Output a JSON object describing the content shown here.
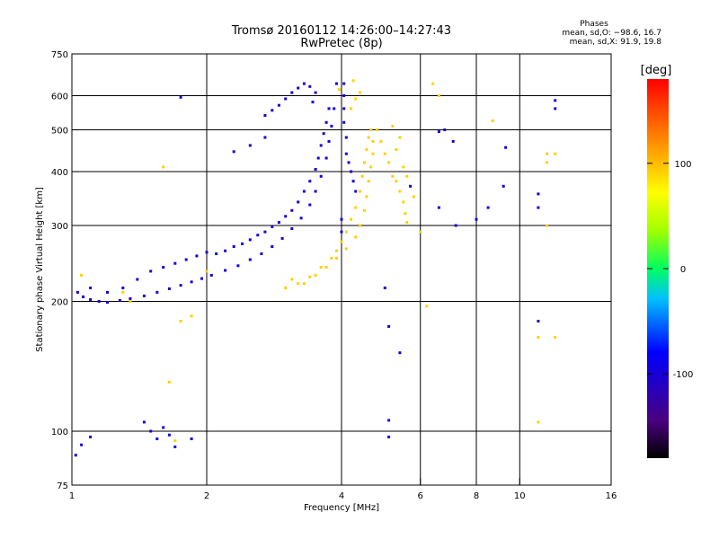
{
  "header": {
    "title_line1": "Tromsø 20160112 14:26:00–14:27:43",
    "title_line2": "RwPretec (8p)"
  },
  "phases_box": {
    "heading": "Phases",
    "line1": "mean, sd,O: −98.6, 16.7",
    "line2": "mean, sd,X:  91.9, 19.8"
  },
  "colorbar": {
    "unit_label": "[deg]",
    "ticks": [
      "100",
      "0",
      "-100"
    ],
    "tick_values": [
      100,
      0,
      -100
    ],
    "range": [
      -180,
      180
    ],
    "colormap": "rainbow (black-violet-blue-cyan-green-yellow-red)"
  },
  "chart_data": {
    "type": "scatter",
    "xlabel": "Frequency [MHz]",
    "ylabel": "Stationary phase Virtual Height [km]",
    "xscale": "log",
    "yscale": "log",
    "xlim": [
      1,
      16
    ],
    "ylim": [
      75,
      750
    ],
    "xticks": [
      "1",
      "2",
      "4",
      "6",
      "8",
      "10",
      "16"
    ],
    "xtick_values": [
      1,
      2,
      4,
      6,
      8,
      10,
      16
    ],
    "yticks": [
      "750",
      "600",
      "500",
      "400",
      "300",
      "200",
      "100",
      "75"
    ],
    "ytick_values": [
      750,
      600,
      500,
      400,
      300,
      200,
      100,
      75
    ],
    "grid_x": [
      2,
      4,
      6,
      8,
      10
    ],
    "grid_y": [
      100,
      200,
      300,
      400,
      500,
      600
    ],
    "series": [
      {
        "name": "O",
        "color_phase": -98.6,
        "points": [
          [
            1.03,
            210
          ],
          [
            1.06,
            205
          ],
          [
            1.1,
            202
          ],
          [
            1.15,
            200
          ],
          [
            1.2,
            199
          ],
          [
            1.28,
            201
          ],
          [
            1.35,
            203
          ],
          [
            1.45,
            206
          ],
          [
            1.55,
            210
          ],
          [
            1.65,
            214
          ],
          [
            1.75,
            218
          ],
          [
            1.85,
            222
          ],
          [
            1.95,
            226
          ],
          [
            2.05,
            230
          ],
          [
            2.2,
            236
          ],
          [
            2.35,
            242
          ],
          [
            2.5,
            250
          ],
          [
            2.65,
            258
          ],
          [
            2.8,
            268
          ],
          [
            2.95,
            280
          ],
          [
            3.1,
            295
          ],
          [
            3.25,
            312
          ],
          [
            3.4,
            335
          ],
          [
            3.5,
            360
          ],
          [
            3.6,
            390
          ],
          [
            3.7,
            430
          ],
          [
            3.75,
            470
          ],
          [
            3.8,
            510
          ],
          [
            3.85,
            560
          ],
          [
            3.9,
            640
          ],
          [
            1.1,
            215
          ],
          [
            1.2,
            210
          ],
          [
            1.3,
            215
          ],
          [
            1.4,
            225
          ],
          [
            1.5,
            235
          ],
          [
            1.6,
            240
          ],
          [
            1.7,
            245
          ],
          [
            1.8,
            250
          ],
          [
            1.9,
            255
          ],
          [
            2.0,
            260
          ],
          [
            2.1,
            258
          ],
          [
            2.2,
            262
          ],
          [
            2.3,
            268
          ],
          [
            2.4,
            272
          ],
          [
            2.5,
            278
          ],
          [
            2.6,
            285
          ],
          [
            2.7,
            290
          ],
          [
            2.8,
            298
          ],
          [
            2.9,
            305
          ],
          [
            3.0,
            315
          ],
          [
            3.1,
            325
          ],
          [
            3.2,
            340
          ],
          [
            3.3,
            360
          ],
          [
            3.4,
            380
          ],
          [
            3.5,
            405
          ],
          [
            3.55,
            430
          ],
          [
            3.6,
            460
          ],
          [
            3.65,
            490
          ],
          [
            3.7,
            520
          ],
          [
            3.75,
            560
          ],
          [
            2.7,
            540
          ],
          [
            2.8,
            555
          ],
          [
            2.9,
            570
          ],
          [
            3.0,
            590
          ],
          [
            3.1,
            610
          ],
          [
            3.2,
            625
          ],
          [
            3.3,
            640
          ],
          [
            3.4,
            630
          ],
          [
            3.5,
            610
          ],
          [
            3.45,
            580
          ],
          [
            4.05,
            640
          ],
          [
            4.05,
            600
          ],
          [
            4.05,
            560
          ],
          [
            4.05,
            520
          ],
          [
            4.1,
            480
          ],
          [
            4.1,
            440
          ],
          [
            4.15,
            420
          ],
          [
            4.2,
            400
          ],
          [
            4.25,
            380
          ],
          [
            4.3,
            360
          ],
          [
            1.45,
            105
          ],
          [
            1.5,
            100
          ],
          [
            1.55,
            96
          ],
          [
            1.6,
            102
          ],
          [
            1.65,
            98
          ],
          [
            1.7,
            92
          ],
          [
            1.02,
            88
          ],
          [
            1.05,
            93
          ],
          [
            1.1,
            97
          ],
          [
            1.85,
            96
          ],
          [
            2.3,
            445
          ],
          [
            2.5,
            460
          ],
          [
            2.7,
            480
          ],
          [
            1.75,
            595
          ],
          [
            5.0,
            215
          ],
          [
            5.1,
            175
          ],
          [
            5.4,
            152
          ],
          [
            5.1,
            106
          ],
          [
            5.1,
            97
          ],
          [
            5.7,
            370
          ],
          [
            6.6,
            495
          ],
          [
            6.6,
            330
          ],
          [
            7.1,
            470
          ],
          [
            8.0,
            310
          ],
          [
            8.5,
            330
          ],
          [
            9.2,
            370
          ],
          [
            9.3,
            455
          ],
          [
            11.0,
            330
          ],
          [
            12.0,
            585
          ],
          [
            12.0,
            560
          ],
          [
            11.0,
            180
          ],
          [
            11.0,
            355
          ],
          [
            6.8,
            500
          ],
          [
            7.2,
            300
          ],
          [
            4.0,
            310
          ],
          [
            4.0,
            290
          ]
        ]
      },
      {
        "name": "X",
        "color_phase": 91.9,
        "points": [
          [
            3.3,
            220
          ],
          [
            3.5,
            230
          ],
          [
            3.7,
            240
          ],
          [
            3.9,
            252
          ],
          [
            4.1,
            265
          ],
          [
            4.3,
            282
          ],
          [
            4.4,
            300
          ],
          [
            4.5,
            325
          ],
          [
            4.55,
            350
          ],
          [
            4.6,
            380
          ],
          [
            4.65,
            410
          ],
          [
            4.7,
            440
          ],
          [
            4.7,
            470
          ],
          [
            4.65,
            500
          ],
          [
            4.6,
            480
          ],
          [
            4.55,
            450
          ],
          [
            4.5,
            420
          ],
          [
            4.45,
            390
          ],
          [
            4.4,
            360
          ],
          [
            4.3,
            330
          ],
          [
            4.2,
            310
          ],
          [
            4.1,
            290
          ],
          [
            4.0,
            275
          ],
          [
            3.9,
            262
          ],
          [
            3.8,
            252
          ],
          [
            3.6,
            240
          ],
          [
            3.4,
            228
          ],
          [
            3.2,
            220
          ],
          [
            3.0,
            215
          ],
          [
            3.1,
            225
          ],
          [
            4.8,
            500
          ],
          [
            4.9,
            470
          ],
          [
            5.0,
            440
          ],
          [
            5.1,
            420
          ],
          [
            5.2,
            390
          ],
          [
            5.3,
            380
          ],
          [
            5.4,
            360
          ],
          [
            5.5,
            340
          ],
          [
            5.55,
            320
          ],
          [
            5.6,
            305
          ],
          [
            5.3,
            450
          ],
          [
            5.4,
            480
          ],
          [
            5.2,
            510
          ],
          [
            5.5,
            410
          ],
          [
            5.6,
            390
          ],
          [
            4.2,
            560
          ],
          [
            4.3,
            590
          ],
          [
            4.4,
            610
          ],
          [
            3.95,
            620
          ],
          [
            4.25,
            650
          ],
          [
            1.05,
            230
          ],
          [
            1.3,
            210
          ],
          [
            1.6,
            410
          ],
          [
            1.75,
            180
          ],
          [
            1.85,
            185
          ],
          [
            1.65,
            130
          ],
          [
            1.7,
            95
          ],
          [
            6.2,
            195
          ],
          [
            6.6,
            600
          ],
          [
            6.4,
            640
          ],
          [
            8.7,
            525
          ],
          [
            11.0,
            105
          ],
          [
            11.5,
            440
          ],
          [
            11.5,
            420
          ],
          [
            11.5,
            300
          ],
          [
            12.0,
            440
          ],
          [
            12.0,
            165
          ],
          [
            11.0,
            165
          ],
          [
            6.0,
            290
          ],
          [
            5.8,
            350
          ],
          [
            2.0,
            235
          ],
          [
            1.35,
            200
          ]
        ]
      }
    ]
  }
}
